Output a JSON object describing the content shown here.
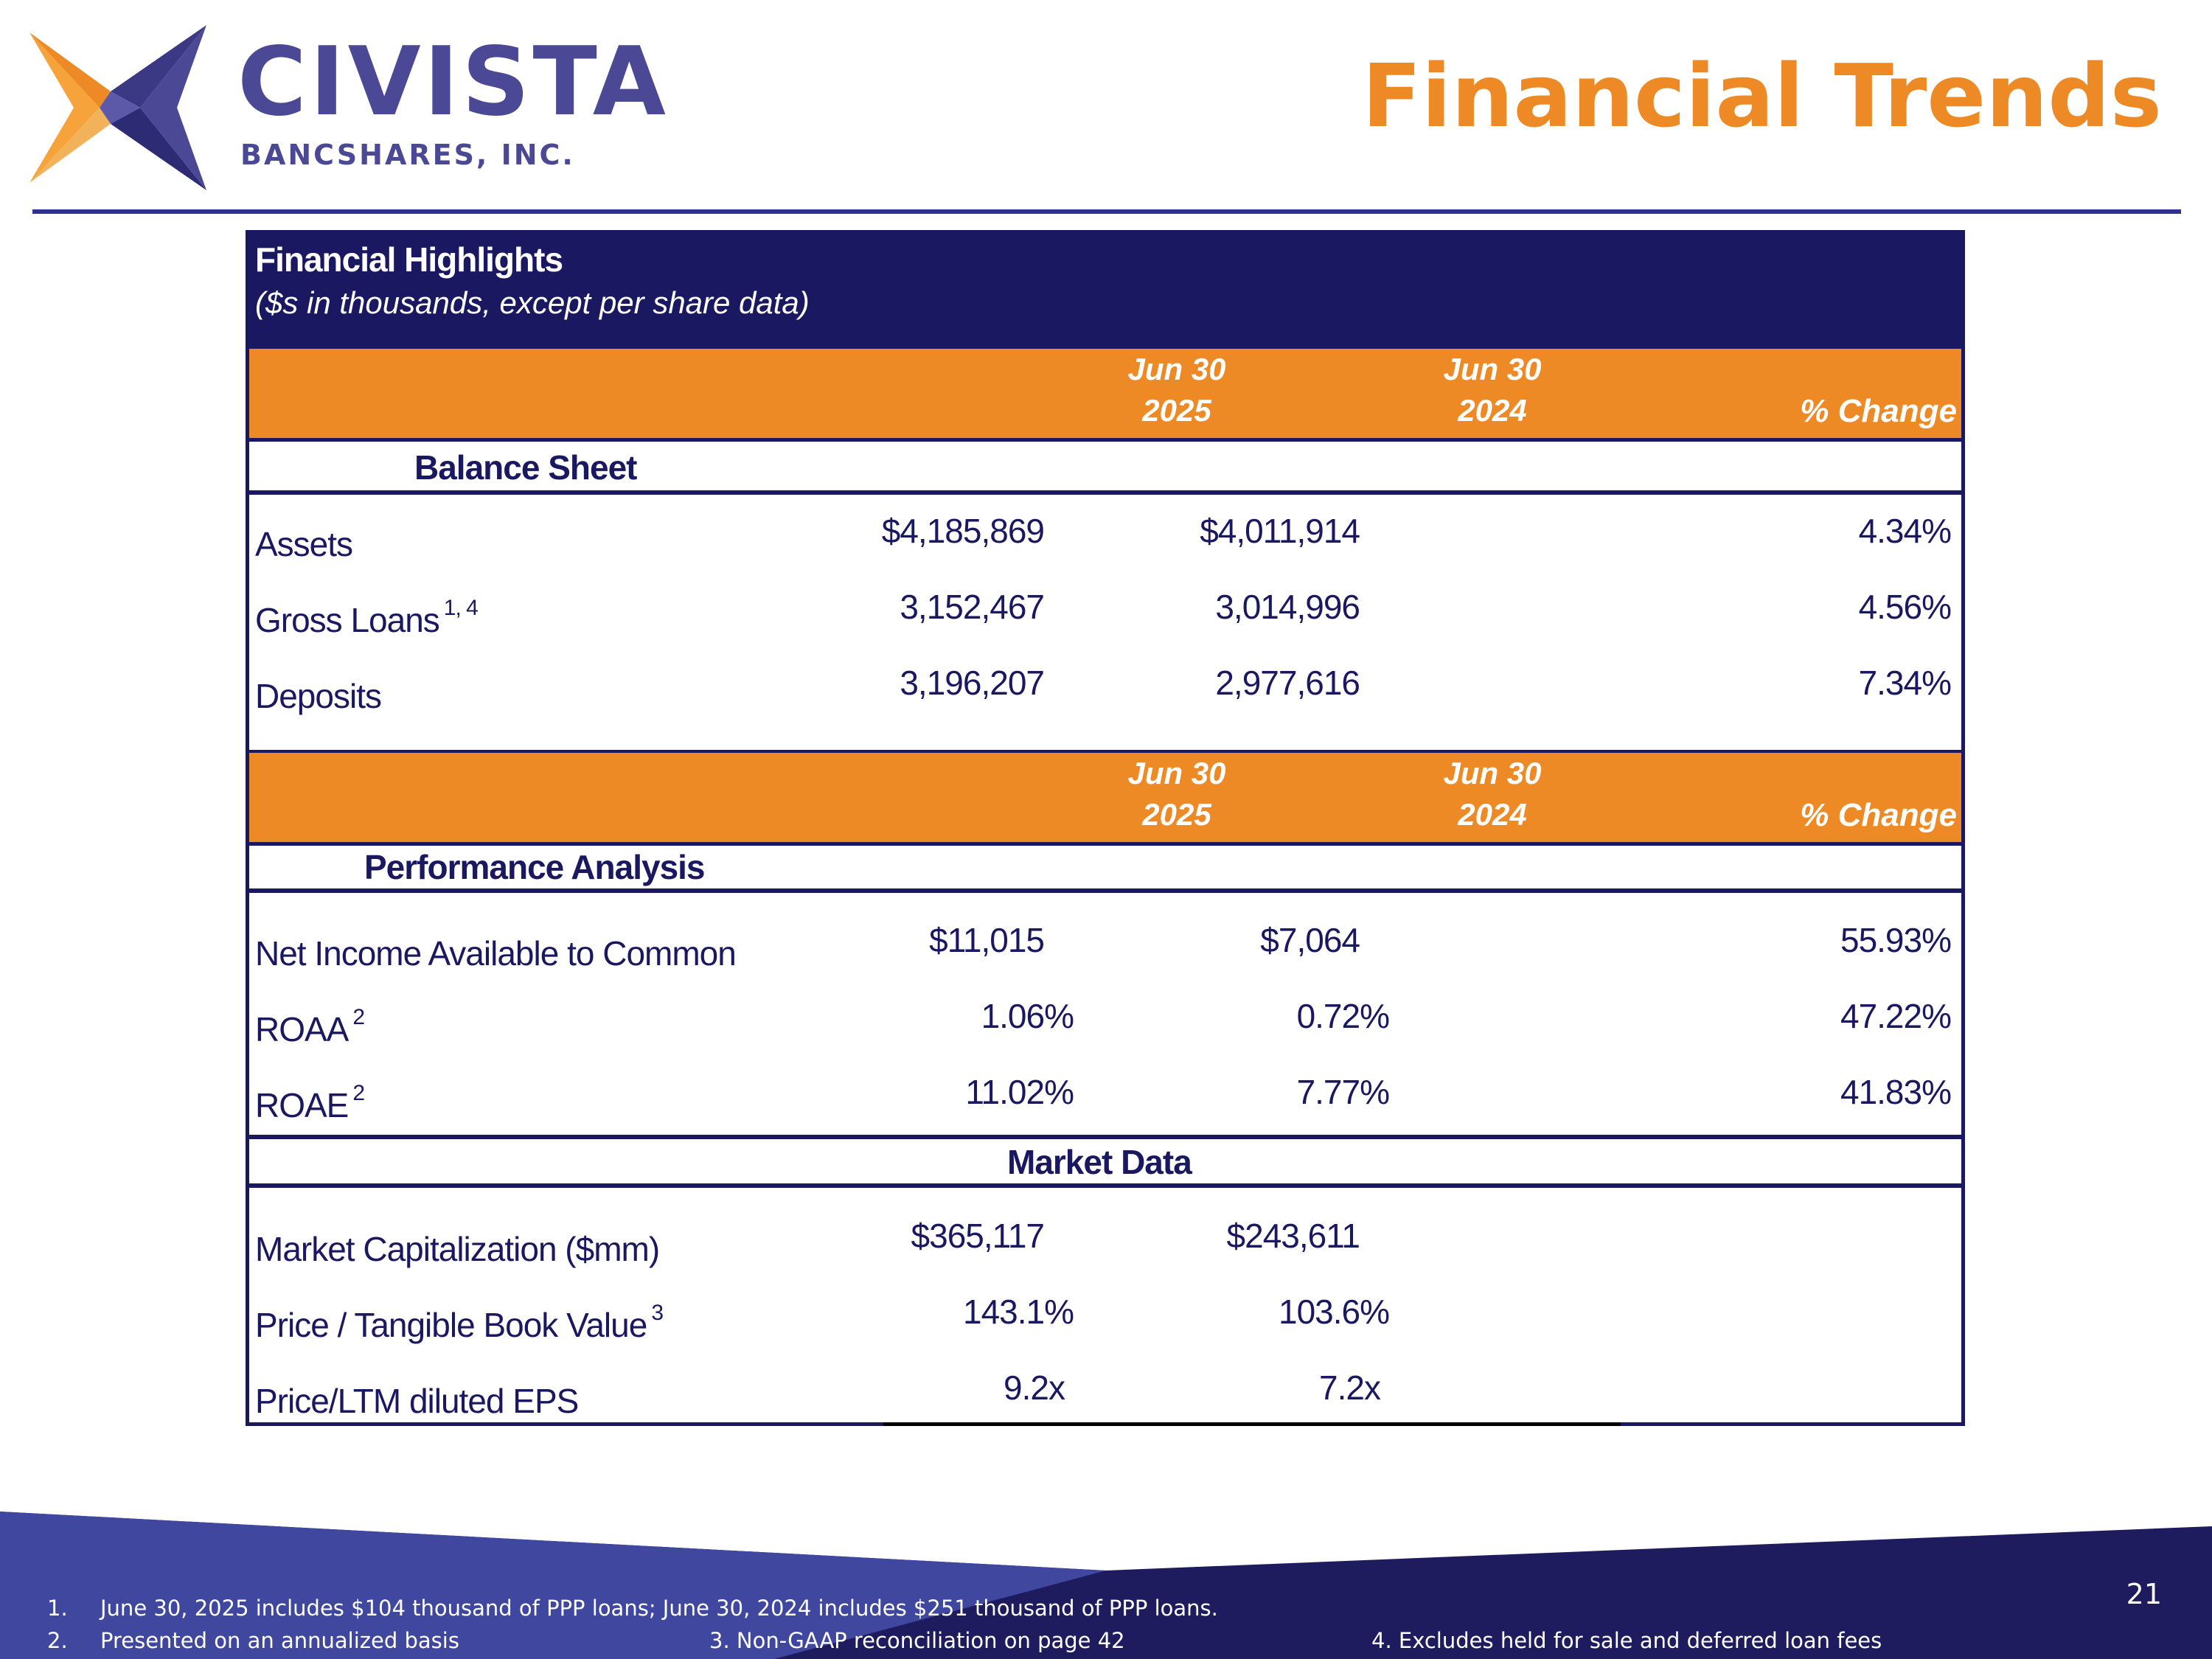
{
  "header": {
    "logo_name": "CIVISTA",
    "logo_sub": "BANCSHARES, INC.",
    "title": "Financial Trends"
  },
  "table": {
    "title": "Financial Highlights",
    "subtitle": "($s in thousands, except per share data)",
    "band": {
      "col1_line1": "Jun 30",
      "col1_line2": "2025",
      "col2_line1": "Jun 30",
      "col2_line2": "2024",
      "pct": "% Change"
    },
    "balance_sheet": {
      "label": "Balance Sheet",
      "rows": [
        {
          "label": "Assets",
          "sup": "",
          "v1": "$4,185,869",
          "v2": "$4,011,914",
          "v3": "4.34%"
        },
        {
          "label": "Gross Loans",
          "sup": "1, 4",
          "v1": "3,152,467",
          "v2": "3,014,996",
          "v3": "4.56%"
        },
        {
          "label": "Deposits",
          "sup": "",
          "v1": "3,196,207",
          "v2": "2,977,616",
          "v3": "7.34%"
        }
      ]
    },
    "performance": {
      "label": "Performance Analysis",
      "rows": [
        {
          "label": "Net Income Available to Common",
          "sup": "",
          "v1": "$11,015",
          "v2": "$7,064",
          "v3": "55.93%"
        },
        {
          "label": "ROAA",
          "sup": "2",
          "v1": "1.06%",
          "v2": "0.72%",
          "v3": "47.22%"
        },
        {
          "label": "ROAE",
          "sup": "2",
          "v1": "11.02%",
          "v2": "7.77%",
          "v3": "41.83%"
        }
      ]
    },
    "market": {
      "label": "Market Data",
      "rows": [
        {
          "label": "Market Capitalization ($mm)",
          "sup": "",
          "v1": "$365,117",
          "v2": "$243,611"
        },
        {
          "label": "Price / Tangible Book Value",
          "sup": "3",
          "v1": "143.1%",
          "v2": "103.6%"
        },
        {
          "label": "Price/LTM diluted EPS",
          "sup": "",
          "v1": "9.2x",
          "v2": "7.2x"
        }
      ]
    }
  },
  "footnotes": {
    "n1": "1.",
    "t1": "June 30, 2025 includes $104 thousand of PPP loans; June 30, 2024 includes $251 thousand of PPP loans.",
    "n2": "2.",
    "t2": "Presented on an annualized basis",
    "t3": "3. Non-GAAP reconciliation on page 42",
    "t4": "4. Excludes held for sale and deferred loan fees"
  },
  "page_number": "21",
  "colors": {
    "navy": "#1b1862",
    "orange": "#ee8a25",
    "logo_purple": "#4b4896",
    "rule_blue": "#2e3192"
  },
  "icons": {
    "logo_mark": "four-point-star-logo-icon"
  }
}
